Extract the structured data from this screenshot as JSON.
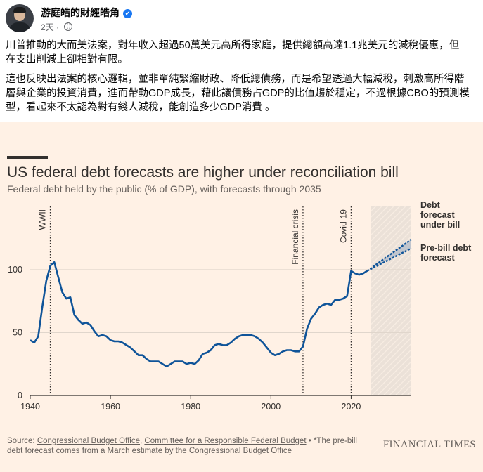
{
  "post": {
    "author": "游庭皓的財經皓角",
    "time": "2天",
    "verified_icon": "verified-badge-icon",
    "privacy_icon": "globe-icon",
    "paragraph1_line1": "川普推動的大而美法案，對年收入超過50萬美元高所得家庭，提供總額高達1.1兆美元的減稅優惠，但",
    "paragraph1_line2": "在支出削減上卻相對有限。",
    "paragraph2_line1": "這也反映出法案的核心邏輯，並非單純緊縮財政、降低總債務，而是希望透過大幅減稅，刺激高所得階",
    "paragraph2_line2": "層與企業的投資消費，進而帶動GDP成長，藉此讓債務占GDP的比值趨於穩定，不過根據CBO的預測模",
    "paragraph2_line3": "型，看起來不太認為對有錢人減稅，能創造多少GDP消費 。"
  },
  "chart_data": {
    "type": "line",
    "title": "US federal debt forecasts are higher under reconciliation bill",
    "subtitle": "Federal debt held by the public (% of GDP), with forecasts through 2035",
    "xlabel": "",
    "ylabel": "",
    "xlim": [
      1940,
      2035
    ],
    "ylim": [
      0,
      110
    ],
    "x_ticks": [
      "1940",
      "1960",
      "1980",
      "2000",
      "2020"
    ],
    "y_ticks": [
      "0",
      "50",
      "100"
    ],
    "grid": "horizontal",
    "historical": {
      "x": [
        1940,
        1941,
        1942,
        1943,
        1944,
        1945,
        1946,
        1947,
        1948,
        1949,
        1950,
        1951,
        1952,
        1953,
        1954,
        1955,
        1956,
        1957,
        1958,
        1959,
        1960,
        1961,
        1962,
        1963,
        1964,
        1965,
        1966,
        1967,
        1968,
        1969,
        1970,
        1971,
        1972,
        1973,
        1974,
        1975,
        1976,
        1977,
        1978,
        1979,
        1980,
        1981,
        1982,
        1983,
        1984,
        1985,
        1986,
        1987,
        1988,
        1989,
        1990,
        1991,
        1992,
        1993,
        1994,
        1995,
        1996,
        1997,
        1998,
        1999,
        2000,
        2001,
        2002,
        2003,
        2004,
        2005,
        2006,
        2007,
        2008,
        2009,
        2010,
        2011,
        2012,
        2013,
        2014,
        2015,
        2016,
        2017,
        2018,
        2019,
        2020,
        2021,
        2022,
        2023,
        2024
      ],
      "y": [
        44,
        42,
        47,
        70,
        91,
        103,
        106,
        94,
        82,
        77,
        78,
        64,
        60,
        57,
        58,
        56,
        51,
        47,
        48,
        47,
        44,
        43,
        43,
        42,
        40,
        38,
        35,
        32,
        32,
        29,
        27,
        27,
        27,
        25,
        23,
        25,
        27,
        27,
        27,
        25,
        26,
        25,
        28,
        33,
        34,
        36,
        40,
        41,
        40,
        40,
        42,
        45,
        47,
        48,
        48,
        48,
        47,
        45,
        42,
        38,
        34,
        32,
        33,
        35,
        36,
        36,
        35,
        35,
        39,
        53,
        61,
        65,
        70,
        72,
        73,
        72,
        76,
        76,
        77,
        79,
        99,
        97,
        96,
        97,
        99
      ]
    },
    "forecasts": [
      {
        "name": "Debt forecast under bill",
        "x": [
          2024,
          2035
        ],
        "y": [
          99,
          124
        ]
      },
      {
        "name": "Pre-bill debt forecast",
        "x": [
          2024,
          2035
        ],
        "y": [
          99,
          117
        ]
      }
    ],
    "annotations": [
      {
        "label": "WWII",
        "x": 1945
      },
      {
        "label": "Financial crisis",
        "x": 2008
      },
      {
        "label": "Covid-19",
        "x": 2020
      }
    ],
    "forecast_period_start": 2025,
    "source_line1_prefix": "Source: ",
    "source_link1": "Congressional Budget Office",
    "source_sep": ", ",
    "source_link2": "Committee for a Responsible Federal Budget",
    "source_line1_suffix": " • *The pre-bill",
    "source_line2": "debt forecast comes from a March estimate by the Congressional Budget Office",
    "publisher": "FINANCIAL TIMES",
    "colors": {
      "background": "#fff1e5",
      "line": "#0f5499",
      "band": "#b8c0cb",
      "axis": "#33302e",
      "grid": "#e0d6cc",
      "text": "#33302e",
      "muted": "#66605c"
    }
  }
}
